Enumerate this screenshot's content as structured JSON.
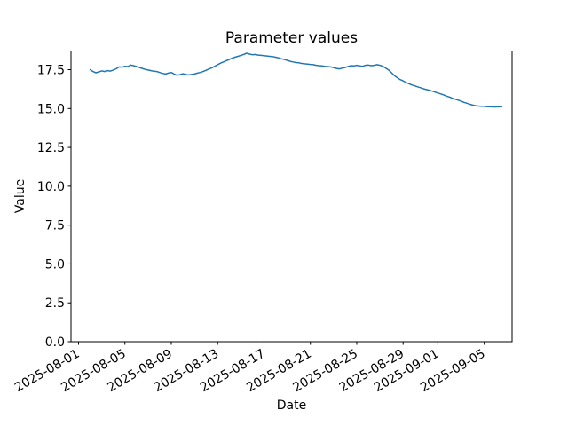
{
  "chart_data": {
    "type": "line",
    "title": "Parameter values",
    "xlabel": "Date",
    "ylabel": "Value",
    "legend": null,
    "grid": false,
    "line_color": "#1f77b4",
    "background_color": "#ffffff",
    "spine_color": "#000000",
    "x_tick_labels": [
      "2025-08-01",
      "2025-08-05",
      "2025-08-09",
      "2025-08-13",
      "2025-08-17",
      "2025-08-21",
      "2025-08-25",
      "2025-08-29",
      "2025-09-01",
      "2025-09-05"
    ],
    "x_tick_days": [
      0,
      4,
      8,
      12,
      16,
      20,
      24,
      28,
      31,
      35
    ],
    "x_tick_rotation_deg": 30,
    "y_tick_labels": [
      "0.0",
      "2.5",
      "5.0",
      "7.5",
      "10.0",
      "12.5",
      "15.0",
      "17.5"
    ],
    "y_tick_values": [
      0,
      2.5,
      5,
      7.5,
      10,
      12.5,
      15,
      17.5
    ],
    "x_epoch": "2025-08-01",
    "xlim_days": [
      -0.65,
      37.4
    ],
    "ylim": [
      0,
      18.7
    ],
    "series": {
      "name": "Parameter values",
      "x_start_day": 1.0,
      "x_step_days": 0.25,
      "values": [
        17.5,
        17.38,
        17.3,
        17.36,
        17.42,
        17.38,
        17.44,
        17.41,
        17.48,
        17.56,
        17.68,
        17.66,
        17.72,
        17.7,
        17.8,
        17.76,
        17.7,
        17.64,
        17.58,
        17.52,
        17.48,
        17.44,
        17.4,
        17.38,
        17.32,
        17.26,
        17.22,
        17.28,
        17.32,
        17.22,
        17.14,
        17.18,
        17.24,
        17.2,
        17.16,
        17.2,
        17.22,
        17.28,
        17.32,
        17.38,
        17.46,
        17.54,
        17.62,
        17.72,
        17.82,
        17.92,
        18.0,
        18.08,
        18.16,
        18.24,
        18.3,
        18.36,
        18.42,
        18.48,
        18.56,
        18.5,
        18.46,
        18.48,
        18.44,
        18.42,
        18.4,
        18.38,
        18.36,
        18.34,
        18.3,
        18.26,
        18.2,
        18.16,
        18.1,
        18.04,
        18.0,
        17.96,
        17.94,
        17.9,
        17.88,
        17.86,
        17.84,
        17.82,
        17.78,
        17.76,
        17.74,
        17.72,
        17.7,
        17.68,
        17.64,
        17.58,
        17.55,
        17.6,
        17.64,
        17.7,
        17.76,
        17.74,
        17.78,
        17.74,
        17.72,
        17.78,
        17.8,
        17.76,
        17.78,
        17.82,
        17.78,
        17.72,
        17.6,
        17.48,
        17.3,
        17.12,
        16.98,
        16.86,
        16.78,
        16.68,
        16.6,
        16.52,
        16.46,
        16.4,
        16.34,
        16.28,
        16.22,
        16.18,
        16.12,
        16.06,
        16.0,
        15.94,
        15.88,
        15.8,
        15.74,
        15.66,
        15.6,
        15.54,
        15.48,
        15.4,
        15.34,
        15.28,
        15.22,
        15.18,
        15.16,
        15.14,
        15.14,
        15.12,
        15.12,
        15.1,
        15.1,
        15.12,
        15.11
      ]
    }
  }
}
